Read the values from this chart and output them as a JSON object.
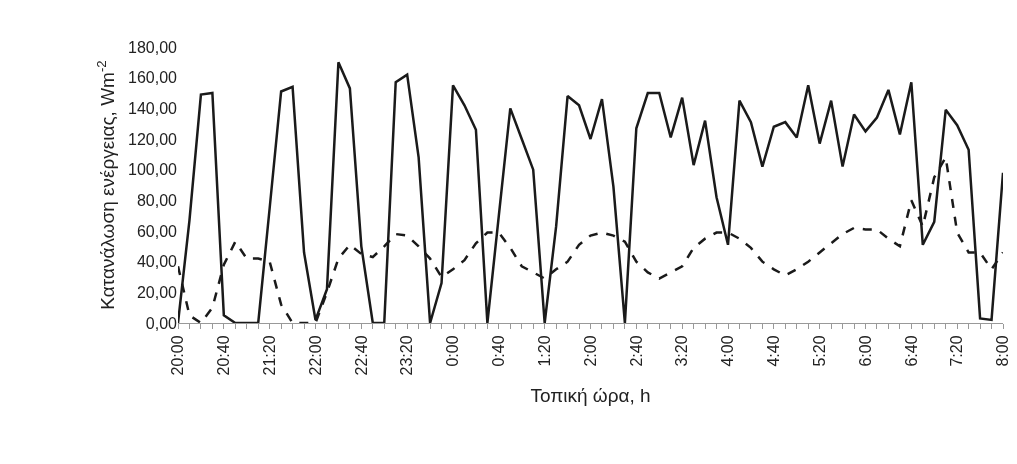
{
  "chart_data": {
    "type": "line",
    "xlabel": "Τοπική ώρα, h",
    "ylabel": "Κατανάλωση ενέργειας, Wm$^{-2}$",
    "categories": [
      "20:00",
      null,
      null,
      null,
      "20:40",
      null,
      null,
      null,
      "21:20",
      null,
      null,
      null,
      "22:00",
      null,
      null,
      null,
      "22:40",
      null,
      null,
      null,
      "23:20",
      null,
      null,
      null,
      "0:00",
      null,
      null,
      null,
      "0:40",
      null,
      null,
      null,
      "1:20",
      null,
      null,
      null,
      "2:00",
      null,
      null,
      null,
      "2:40",
      null,
      null,
      null,
      "3:20",
      null,
      null,
      null,
      "4:00",
      null,
      null,
      null,
      "4:40",
      null,
      null,
      null,
      "5:20",
      null,
      null,
      null,
      "6:00",
      null,
      null,
      null,
      "6:40",
      null,
      null,
      null,
      "7:20",
      null,
      null,
      null,
      "8:00"
    ],
    "series": [
      {
        "color": "#1a1a1a",
        "line_style": "solid",
        "values": [
          0,
          67,
          149,
          150,
          5,
          0,
          0,
          0,
          75,
          151,
          154,
          46,
          2,
          22,
          170,
          153,
          50,
          0,
          0,
          157,
          162,
          108,
          0,
          26,
          155,
          142,
          126,
          0,
          70,
          140,
          120,
          100,
          0,
          63,
          148,
          142,
          120,
          146,
          89,
          0,
          127,
          150,
          150,
          121,
          147,
          103,
          132,
          82,
          51,
          145,
          131,
          102,
          128,
          131,
          121,
          155,
          117,
          145,
          102,
          136,
          125,
          134,
          152,
          123,
          157,
          51,
          66,
          139,
          129,
          113,
          3,
          2,
          98
        ]
      },
      {
        "color": "#1a1a1a",
        "line_style": "dashed",
        "values": [
          37,
          5,
          0,
          10,
          38,
          53,
          42,
          42,
          40,
          12,
          0,
          0,
          0,
          20,
          42,
          51,
          45,
          43,
          50,
          58,
          57,
          50,
          42,
          30,
          35,
          41,
          52,
          59,
          59,
          49,
          37,
          33,
          29,
          35,
          40,
          51,
          57,
          59,
          57,
          53,
          40,
          33,
          29,
          33,
          37,
          49,
          55,
          59,
          59,
          55,
          49,
          40,
          35,
          31,
          35,
          40,
          46,
          52,
          58,
          62,
          61,
          61,
          55,
          50,
          80,
          63,
          95,
          108,
          59,
          46,
          46,
          35,
          46
        ]
      }
    ],
    "ylim": [
      0,
      180
    ],
    "yticks": [
      {
        "value": 0,
        "label": "0,00"
      },
      {
        "value": 20,
        "label": "20,00"
      },
      {
        "value": 40,
        "label": "40,00"
      },
      {
        "value": 60,
        "label": "60,00"
      },
      {
        "value": 80,
        "label": "80,00"
      },
      {
        "value": 100,
        "label": "100,00"
      },
      {
        "value": 120,
        "label": "120,00"
      },
      {
        "value": 140,
        "label": "140,00"
      },
      {
        "value": 160,
        "label": "160,00"
      },
      {
        "value": 180,
        "label": "180,00"
      }
    ],
    "grid": false
  }
}
